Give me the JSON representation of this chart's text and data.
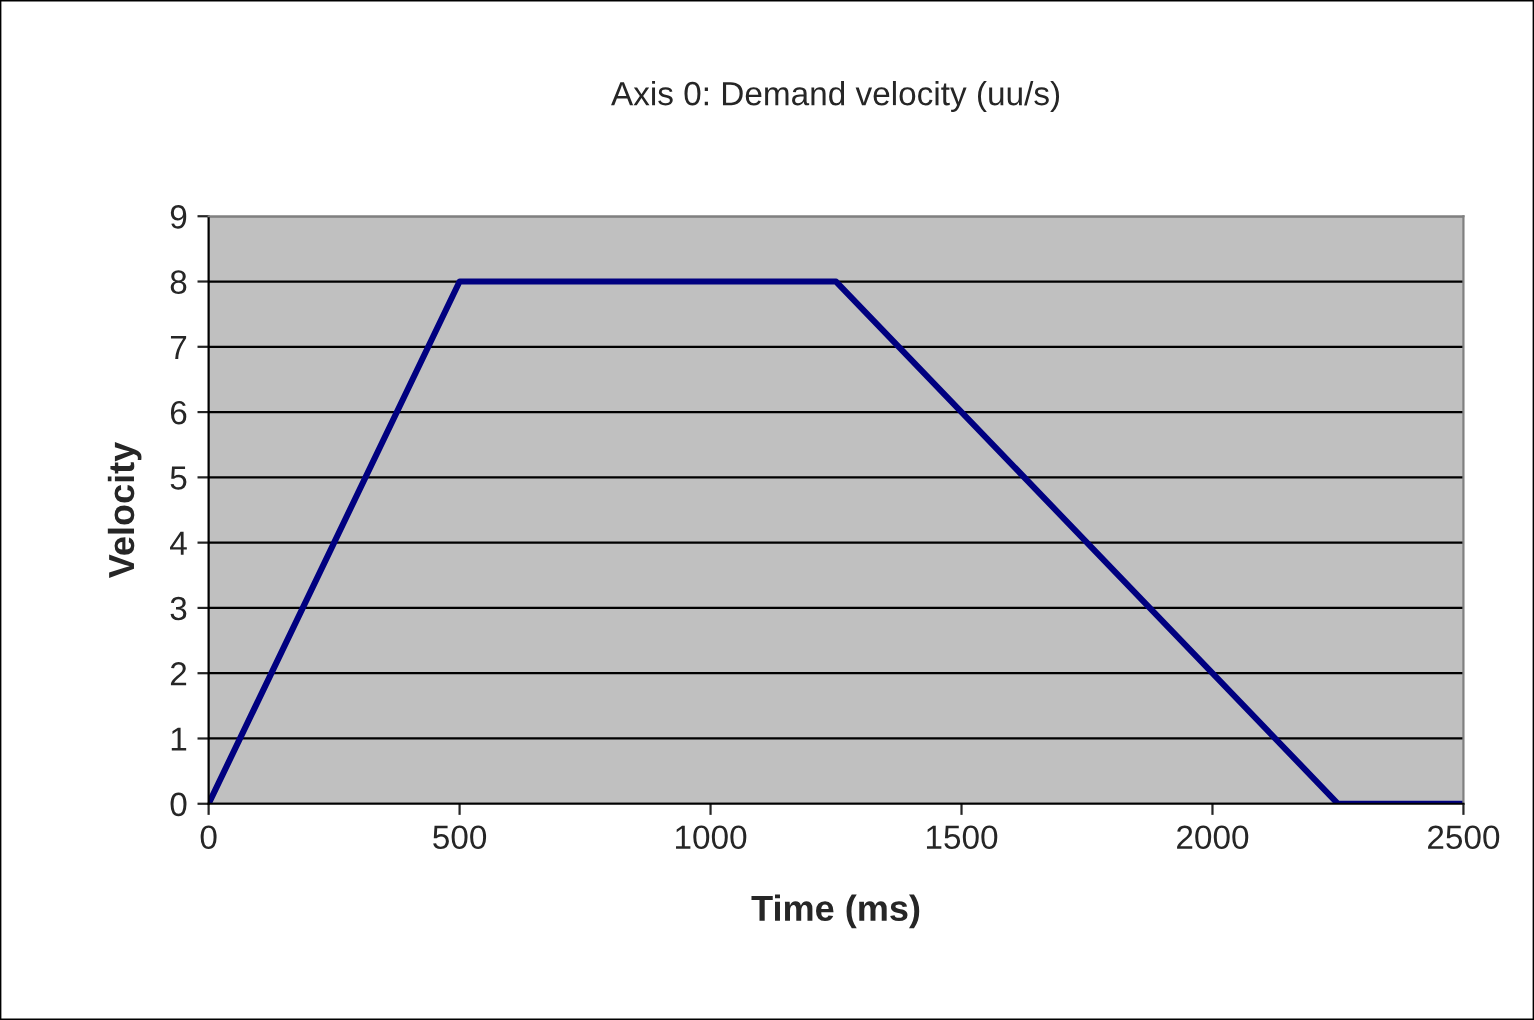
{
  "chart_data": {
    "type": "line",
    "title": "Axis 0: Demand velocity (uu/s)",
    "xlabel": "Time (ms)",
    "ylabel": "Velocity",
    "x": [
      0,
      500,
      1250,
      2250,
      2500
    ],
    "series": [
      {
        "color": "#000080",
        "values": [
          0,
          8,
          8,
          0,
          0
        ]
      }
    ],
    "xlim": [
      0,
      2500
    ],
    "xticks": [
      0,
      500,
      1000,
      1500,
      2000,
      2500
    ],
    "ylim": [
      0,
      9
    ],
    "yticks": [
      0,
      1,
      2,
      3,
      4,
      5,
      6,
      7,
      8,
      9
    ],
    "grid": "y",
    "marker": "none",
    "line_style": "solid"
  }
}
